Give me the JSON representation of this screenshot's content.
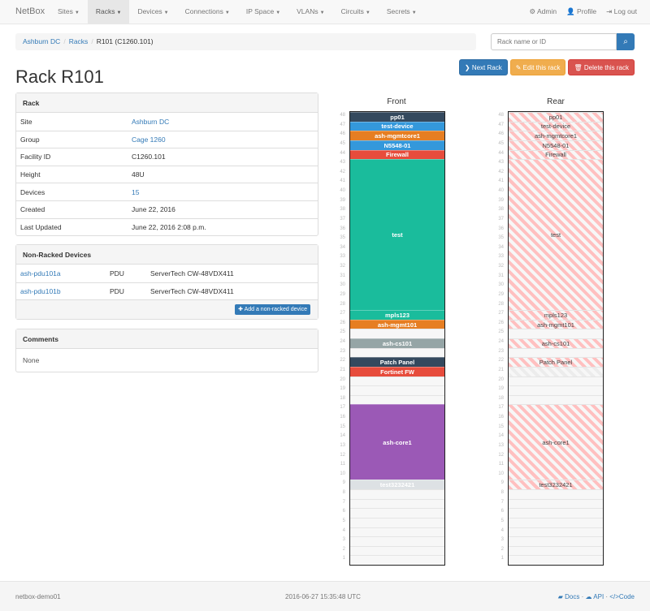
{
  "nav": {
    "brand": "NetBox",
    "items": [
      {
        "label": "Sites"
      },
      {
        "label": "Racks",
        "active": true
      },
      {
        "label": "Devices"
      },
      {
        "label": "Connections"
      },
      {
        "label": "IP Space"
      },
      {
        "label": "VLANs"
      },
      {
        "label": "Circuits"
      },
      {
        "label": "Secrets"
      }
    ],
    "right": [
      {
        "icon": "gear-icon",
        "glyph": "⚙",
        "label": "Admin"
      },
      {
        "icon": "user-icon",
        "glyph": "👤",
        "label": "Profile"
      },
      {
        "icon": "logout-icon",
        "glyph": "⇥",
        "label": "Log out"
      }
    ]
  },
  "breadcrumb": [
    "Ashburn DC",
    "Racks",
    "R101 (C1260.101)"
  ],
  "search": {
    "placeholder": "Rack name or ID",
    "icon": "search-icon"
  },
  "buttons": {
    "next": "Next Rack",
    "edit": "Edit this rack",
    "delete": "Delete this rack"
  },
  "title": "Rack R101",
  "rack_panel": {
    "heading": "Rack",
    "rows": [
      {
        "k": "Site",
        "v": "Ashburn DC",
        "link": true
      },
      {
        "k": "Group",
        "v": "Cage 1260",
        "link": true
      },
      {
        "k": "Facility ID",
        "v": "C1260.101"
      },
      {
        "k": "Height",
        "v": "48U"
      },
      {
        "k": "Devices",
        "v": "15",
        "link": true
      },
      {
        "k": "Created",
        "v": "June 22, 2016"
      },
      {
        "k": "Last Updated",
        "v": "June 22, 2016 2:08 p.m."
      }
    ]
  },
  "nonracked": {
    "heading": "Non-Racked Devices",
    "rows": [
      {
        "name": "ash-pdu101a",
        "role": "PDU",
        "type": "ServerTech CW-48VDX411"
      },
      {
        "name": "ash-pdu101b",
        "role": "PDU",
        "type": "ServerTech CW-48VDX411"
      }
    ],
    "add_label": "Add a non-racked device"
  },
  "comments": {
    "heading": "Comments",
    "body": "None"
  },
  "elevation": {
    "front_label": "Front",
    "rear_label": "Rear",
    "height": 48,
    "devices": [
      {
        "name": "pp01",
        "pos": 48,
        "u": 1,
        "color": "#34495e",
        "rear": true
      },
      {
        "name": "test-device",
        "pos": 47,
        "u": 1,
        "color": "#3498db",
        "rear": true
      },
      {
        "name": "ash-mgmtcore1",
        "pos": 46,
        "u": 1,
        "color": "#e67e22",
        "rear": true
      },
      {
        "name": "N5548-01",
        "pos": 45,
        "u": 1,
        "color": "#3498db",
        "rear": true
      },
      {
        "name": "Firewall",
        "pos": 44,
        "u": 1,
        "color": "#e74c3c",
        "rear": true
      },
      {
        "name": "test",
        "pos": 28,
        "u": 16,
        "color": "#1abc9c",
        "rear": true
      },
      {
        "name": "mpls123",
        "pos": 27,
        "u": 1,
        "color": "#1abc9c",
        "rear": true
      },
      {
        "name": "ash-mgmt101",
        "pos": 26,
        "u": 1,
        "color": "#e67e22",
        "rear": true
      },
      {
        "name": "ash-cs101",
        "pos": 24,
        "u": 1,
        "color": "#95a5a6",
        "rear": true
      },
      {
        "name": "Patch Panel",
        "pos": 22,
        "u": 1,
        "color": "#34495e",
        "rear": true
      },
      {
        "name": "Fortinet FW",
        "pos": 21,
        "u": 1,
        "color": "#e74c3c",
        "rear": false
      },
      {
        "name": "ash-core1",
        "pos": 10,
        "u": 8,
        "color": "#9b59b6",
        "rear": true
      },
      {
        "name": "test3232421",
        "pos": 9,
        "u": 1,
        "color": "#dde1e4",
        "rear": true
      }
    ]
  },
  "footer": {
    "hostname": "netbox-demo01",
    "timestamp": "2016-06-27 15:35:48 UTC",
    "docs": "Docs",
    "api": "API",
    "code": "Code"
  }
}
